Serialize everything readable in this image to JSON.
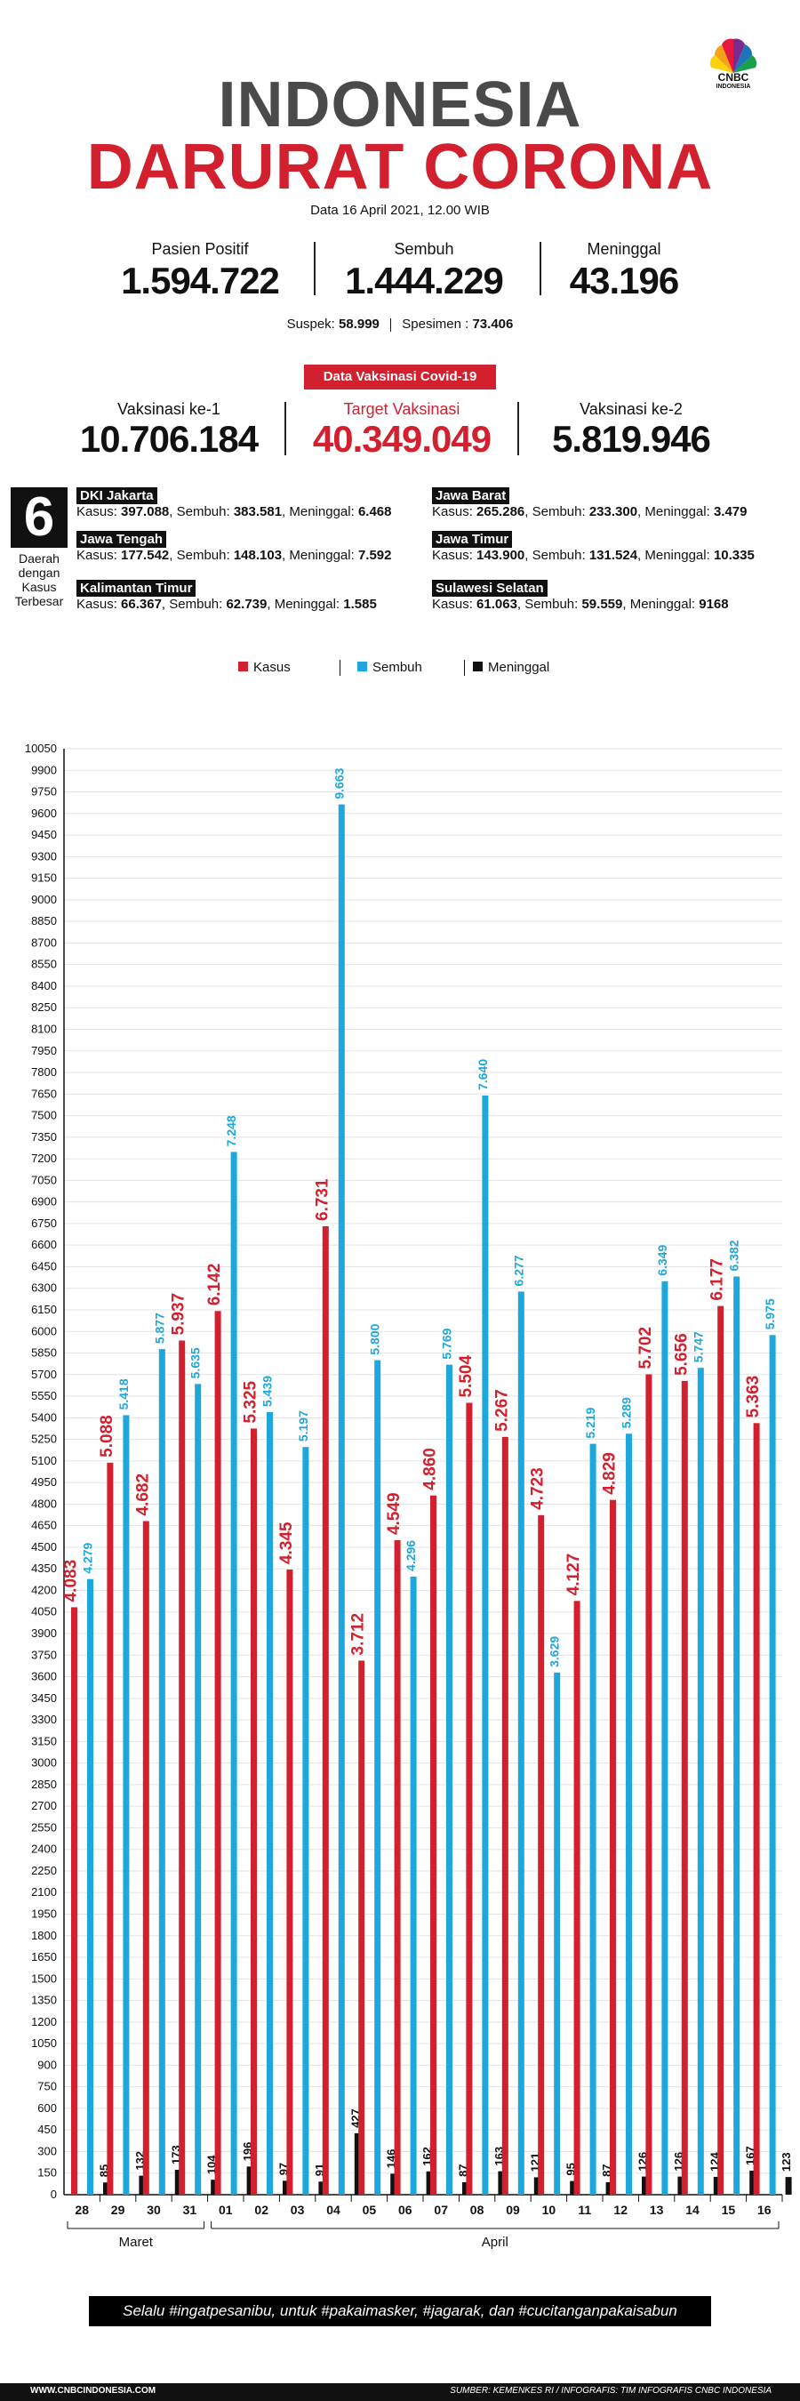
{
  "header": {
    "title_line1": "INDONESIA",
    "title_line2": "DARURAT CORONA",
    "date": "Data 16 April 2021, 12.00 WIB",
    "logo_text": "CNBC",
    "logo_sub": "INDONESIA"
  },
  "stats": {
    "positive_label": "Pasien Positif",
    "positive_value": "1.594.722",
    "recovered_label": "Sembuh",
    "recovered_value": "1.444.229",
    "deaths_label": "Meninggal",
    "deaths_value": "43.196",
    "suspect_label": "Suspek:",
    "suspect_value": "58.999",
    "specimen_label": "Spesimen :",
    "specimen_value": "73.406"
  },
  "vaccine": {
    "badge": "Data Vaksinasi Covid-19",
    "dose1_label": "Vaksinasi ke-1",
    "dose1_value": "10.706.184",
    "target_label": "Target Vaksinasi",
    "target_value": "40.349.049",
    "dose2_label": "Vaksinasi ke-2",
    "dose2_value": "5.819.946"
  },
  "regions": {
    "big_number": "6",
    "side_label_1": "Daerah",
    "side_label_2": "dengan",
    "side_label_3": "Kasus",
    "side_label_4": "Terbesar",
    "items": [
      {
        "name": "DKI Jakarta",
        "kasus_label": "Kasus:",
        "kasus": "397.088",
        "sembuh_label": ", Sembuh:",
        "sembuh": "383.581",
        "meninggal_label": ", Meninggal:",
        "meninggal": "6.468"
      },
      {
        "name": "Jawa Barat",
        "kasus_label": "Kasus:",
        "kasus": "265.286",
        "sembuh_label": ", Sembuh:",
        "sembuh": "233.300",
        "meninggal_label": ", Meninggal:",
        "meninggal": "3.479"
      },
      {
        "name": "Jawa Tengah",
        "kasus_label": "Kasus:",
        "kasus": "177.542",
        "sembuh_label": ", Sembuh:",
        "sembuh": "148.103",
        "meninggal_label": ", Meninggal:",
        "meninggal": "7.592"
      },
      {
        "name": "Jawa Timur",
        "kasus_label": "Kasus:",
        "kasus": "143.900",
        "sembuh_label": ", Sembuh:",
        "sembuh": "131.524",
        "meninggal_label": ", Meninggal:",
        "meninggal": "10.335"
      },
      {
        "name": "Kalimantan Timur",
        "kasus_label": "Kasus:",
        "kasus": "66.367",
        "sembuh_label": ", Sembuh:",
        "sembuh": "62.739",
        "meninggal_label": ",  Meninggal:",
        "meninggal": "1.585"
      },
      {
        "name": "Sulawesi Selatan",
        "kasus_label": "Kasus:",
        "kasus": "61.063",
        "sembuh_label": ", Sembuh:",
        "sembuh": "59.559",
        "meninggal_label": ", Meninggal:",
        "meninggal": "9168"
      }
    ]
  },
  "colors": {
    "kasus": "#d3202f",
    "sembuh": "#1ea7dc",
    "meninggal": "#111111"
  },
  "chart_data": {
    "type": "bar",
    "categories": [
      "28",
      "29",
      "30",
      "31",
      "01",
      "02",
      "03",
      "04",
      "05",
      "06",
      "07",
      "08",
      "09",
      "10",
      "11",
      "12",
      "13",
      "14",
      "15",
      "16"
    ],
    "month_groups": [
      {
        "label": "Maret",
        "from": 0,
        "to": 3
      },
      {
        "label": "April",
        "from": 4,
        "to": 19
      }
    ],
    "series": [
      {
        "name": "Kasus",
        "values": [
          4083,
          5088,
          4682,
          5937,
          6142,
          5325,
          4345,
          6731,
          3712,
          4549,
          4860,
          5504,
          5267,
          4723,
          4127,
          4829,
          5702,
          5656,
          6177,
          5363
        ],
        "labels": [
          "4.083",
          "5.088",
          "4.682",
          "5.937",
          "6.142",
          "5.325",
          "4.345",
          "6.731",
          "3.712",
          "4.549",
          "4.860",
          "5.504",
          "5.267",
          "4.723",
          "4.127",
          "4.829",
          "5.702",
          "5.656",
          "6.177",
          "5.363"
        ]
      },
      {
        "name": "Sembuh",
        "values": [
          4279,
          5418,
          5877,
          5635,
          7248,
          5439,
          5197,
          9663,
          5800,
          4296,
          5769,
          7640,
          6277,
          3629,
          5219,
          5289,
          6349,
          5747,
          6382,
          5975
        ],
        "labels": [
          "4.279",
          "5.418",
          "5.877",
          "5.635",
          "7.248",
          "5.439",
          "5.197",
          "9.663",
          "5.800",
          "4.296",
          "5.769",
          "7.640",
          "6.277",
          "3.629",
          "5.219",
          "5.289",
          "6.349",
          "5.747",
          "6.382",
          "5.975"
        ]
      },
      {
        "name": "Meninggal",
        "values": [
          85,
          132,
          173,
          104,
          196,
          97,
          91,
          427,
          146,
          162,
          87,
          163,
          121,
          95,
          87,
          126,
          126,
          124,
          167,
          123
        ],
        "labels": [
          "85",
          "132",
          "173",
          "104",
          "196",
          "97",
          "91",
          "427",
          "146",
          "162",
          "87",
          "163",
          "121",
          "95",
          "87",
          "126",
          "126",
          "124",
          "167",
          "123"
        ]
      }
    ],
    "ylim": [
      0,
      10050
    ],
    "ytick_step": 150,
    "grid": true,
    "legend_placement": "top-center"
  },
  "footer": {
    "slogan": "Selalu #ingatpesanibu, untuk #pakaimasker, #jagarak, dan #cucitanganpakaisabun",
    "site": "WWW.CNBCINDONESIA.COM",
    "source": "SUMBER: KEMENKES RI / INFOGRAFIS: TIM INFOGRAFIS CNBC INDONESIA"
  }
}
